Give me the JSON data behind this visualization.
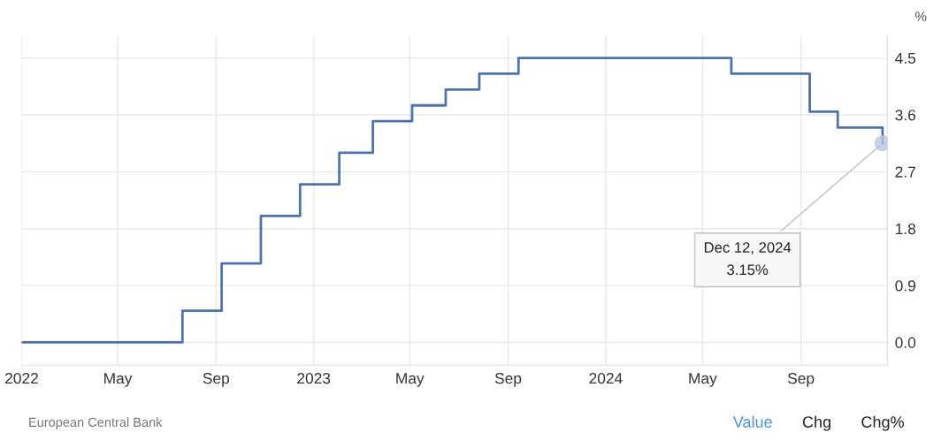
{
  "chart_data": {
    "type": "step",
    "ylabel": "%",
    "x": [
      "2022-01-01",
      "2022-07-21",
      "2022-09-08",
      "2022-10-27",
      "2022-12-15",
      "2023-02-02",
      "2023-03-16",
      "2023-05-04",
      "2023-06-15",
      "2023-07-27",
      "2023-09-14",
      "2024-06-06",
      "2024-09-12",
      "2024-10-17",
      "2024-12-12"
    ],
    "series": [
      {
        "color": "#4e73a8",
        "values": [
          0,
          0.5,
          1.25,
          2.0,
          2.5,
          3.0,
          3.5,
          3.75,
          4.0,
          4.25,
          4.5,
          4.25,
          3.65,
          3.4,
          3.15
        ]
      }
    ],
    "xlim": [
      "2022-01-01",
      "2024-12-18"
    ],
    "ylim": [
      -0.36,
      4.85
    ],
    "xticks": [
      {
        "value": "2022-01-01",
        "label": "2022"
      },
      {
        "value": "2022-05-01",
        "label": "May"
      },
      {
        "value": "2022-09-01",
        "label": "Sep"
      },
      {
        "value": "2023-01-01",
        "label": "2023"
      },
      {
        "value": "2023-05-01",
        "label": "May"
      },
      {
        "value": "2023-09-01",
        "label": "Sep"
      },
      {
        "value": "2024-01-01",
        "label": "2024"
      },
      {
        "value": "2024-05-01",
        "label": "May"
      },
      {
        "value": "2024-09-01",
        "label": "Sep"
      }
    ],
    "yticks": [
      {
        "value": 0,
        "label": "0.0"
      },
      {
        "value": 0.9,
        "label": "0.9"
      },
      {
        "value": 1.8,
        "label": "1.8"
      },
      {
        "value": 2.7,
        "label": "2.7"
      },
      {
        "value": 3.6,
        "label": "3.6"
      },
      {
        "value": 4.5,
        "label": "4.5"
      }
    ],
    "grid": true,
    "annotations": [
      {
        "text": "Dec 12, 2024\n3.15%",
        "x": "2024-12-12",
        "y": 3.15
      },
      "European Central Bank",
      "Value",
      "Chg",
      "Chg%"
    ]
  }
}
